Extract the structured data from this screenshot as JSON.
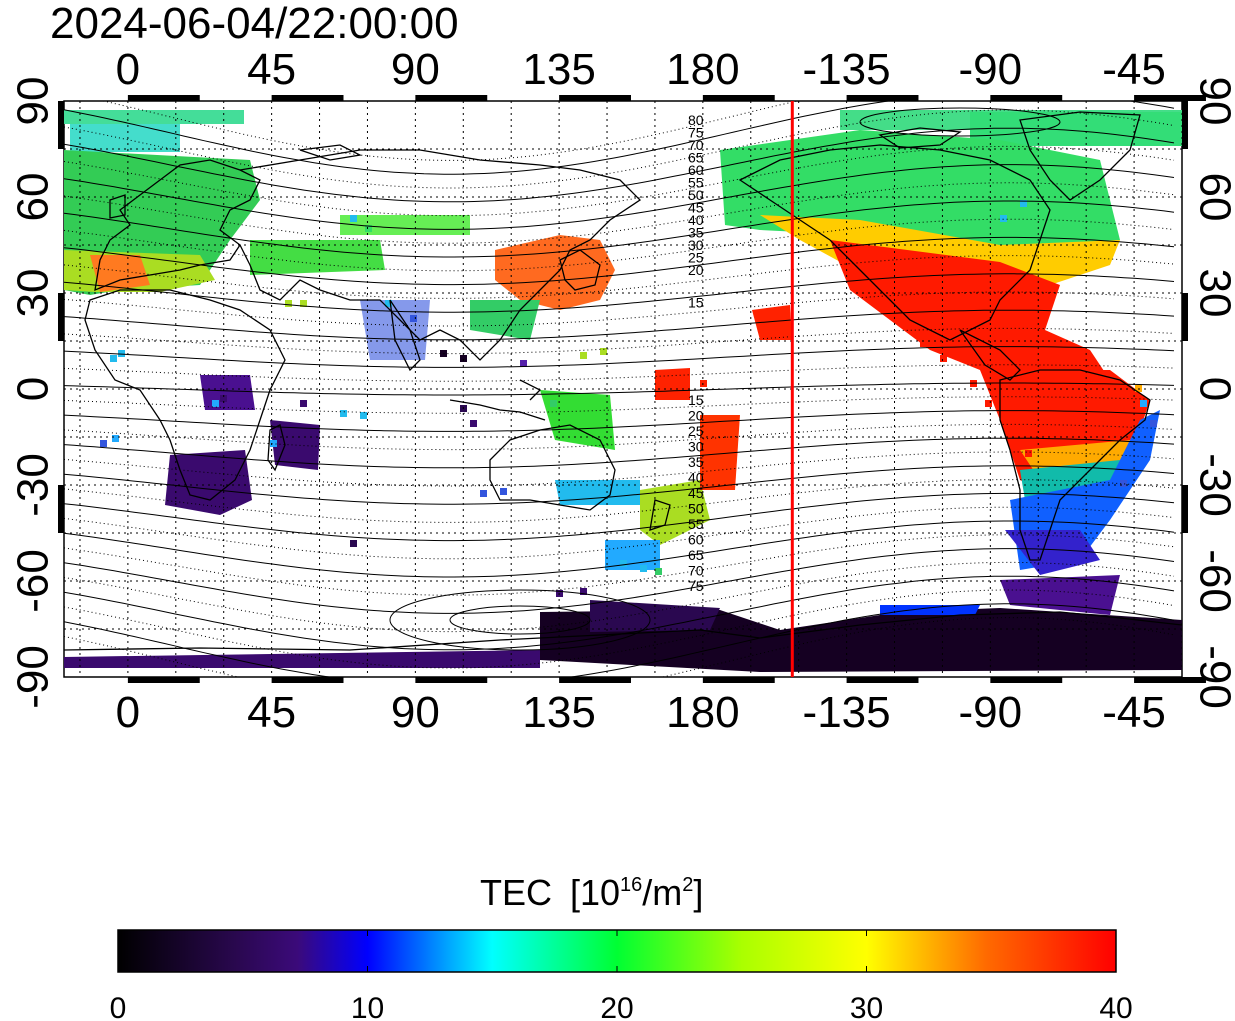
{
  "timestamp": "2024-06-04/22:00:00",
  "map": {
    "x_ticks": [
      "0",
      "45",
      "90",
      "135",
      "180",
      "-135",
      "-90",
      "-45"
    ],
    "x_tick_lon": [
      0,
      45,
      90,
      135,
      180,
      225,
      270,
      315
    ],
    "y_ticks": [
      "90",
      "60",
      "30",
      "0",
      "-30",
      "-60",
      "-90"
    ],
    "y_tick_lat": [
      90,
      60,
      30,
      0,
      -30,
      -60,
      -90
    ],
    "lon_range": [
      -20,
      330
    ],
    "lat_range": [
      -90,
      90
    ],
    "terminator_lon": 208,
    "terminator_color": "#ff0000",
    "contour_labels_north": [
      "80",
      "75",
      "70",
      "65",
      "60",
      "55",
      "50",
      "45",
      "40",
      "35",
      "30",
      "25",
      "20",
      "15"
    ],
    "contour_labels_south": [
      "15",
      "20",
      "25",
      "30",
      "35",
      "40",
      "45",
      "50",
      "55",
      "60",
      "65",
      "70",
      "75"
    ]
  },
  "colorbar": {
    "title": "TEC",
    "unit_base": "[10",
    "unit_exp": "16",
    "unit_mid": "/m",
    "unit_exp2": "2",
    "unit_end": "]",
    "min": 0,
    "max": 40,
    "tick_labels": [
      "0",
      "10",
      "20",
      "30",
      "40"
    ],
    "tick_values": [
      0,
      10,
      20,
      30,
      40
    ],
    "colors": [
      "#000000",
      "#3a0a6e",
      "#0000ff",
      "#00ffff",
      "#00ff00",
      "#ffff00",
      "#ff6600",
      "#ff0000"
    ]
  },
  "tec_regions": [
    {
      "name": "north-america",
      "color": "#ff2000"
    },
    {
      "name": "canada",
      "color": "#33dd66"
    },
    {
      "name": "east-asia",
      "color": "#ff6a20"
    },
    {
      "name": "europe",
      "color": "#33cc44"
    },
    {
      "name": "south-america",
      "color": "#1060ff"
    },
    {
      "name": "antarctica",
      "color": "#150022"
    }
  ]
}
